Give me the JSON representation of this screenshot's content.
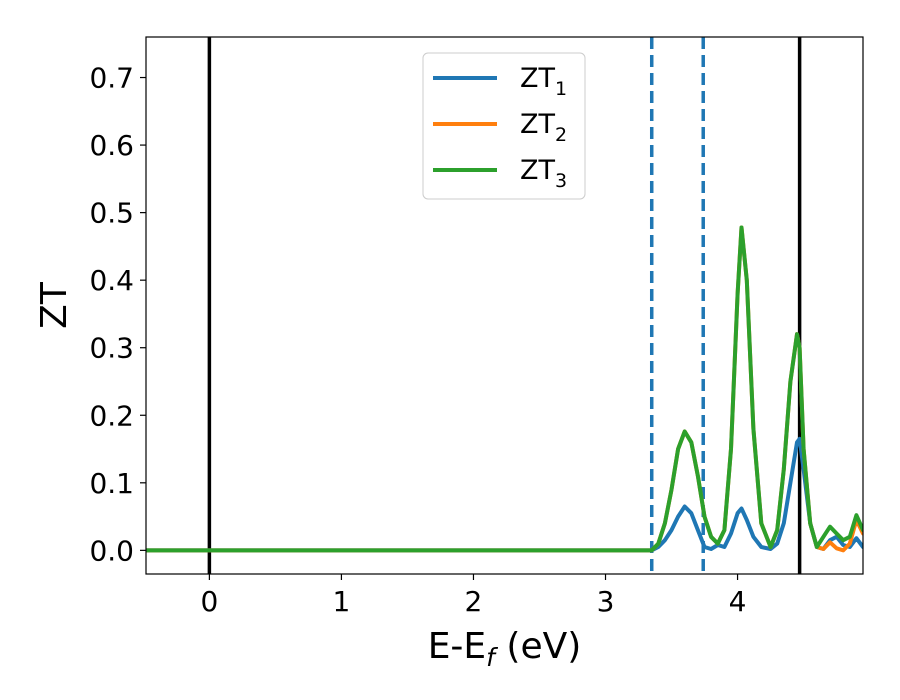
{
  "chart_data": {
    "type": "line",
    "xlabel": {
      "base": "E-E",
      "sub": "f",
      "suffix": " (eV)"
    },
    "ylabel": "ZT",
    "xlim": [
      -0.48,
      4.95
    ],
    "ylim": [
      -0.035,
      0.76
    ],
    "xticks": [
      0,
      1,
      2,
      3,
      4
    ],
    "xtick_labels": [
      "0",
      "1",
      "2",
      "3",
      "4"
    ],
    "yticks": [
      0.0,
      0.1,
      0.2,
      0.3,
      0.4,
      0.5,
      0.6,
      0.7
    ],
    "ytick_labels": [
      "0.0",
      "0.1",
      "0.2",
      "0.3",
      "0.4",
      "0.5",
      "0.6",
      "0.7"
    ],
    "grid": false,
    "legend_position": "top-center",
    "vlines": [
      {
        "x": 0.0,
        "style": "solid",
        "color": "#000000"
      },
      {
        "x": 4.47,
        "style": "solid",
        "color": "#000000"
      },
      {
        "x": 3.35,
        "style": "dashed",
        "color": "#1f77b4"
      },
      {
        "x": 3.74,
        "style": "dashed",
        "color": "#1f77b4"
      }
    ],
    "series": [
      {
        "name": {
          "base": "ZT",
          "sub": "1"
        },
        "color": "#1f77b4",
        "x": [
          -0.48,
          3.35,
          3.4,
          3.45,
          3.5,
          3.55,
          3.6,
          3.65,
          3.7,
          3.75,
          3.8,
          3.85,
          3.9,
          3.95,
          4.0,
          4.03,
          4.07,
          4.12,
          4.18,
          4.25,
          4.3,
          4.35,
          4.4,
          4.45,
          4.47,
          4.5,
          4.55,
          4.6,
          4.65,
          4.7,
          4.75,
          4.8,
          4.85,
          4.9,
          4.95
        ],
        "y": [
          0.0,
          0.0,
          0.005,
          0.015,
          0.03,
          0.05,
          0.065,
          0.055,
          0.03,
          0.005,
          0.002,
          0.008,
          0.005,
          0.025,
          0.055,
          0.062,
          0.045,
          0.02,
          0.005,
          0.002,
          0.01,
          0.04,
          0.1,
          0.16,
          0.165,
          0.12,
          0.04,
          0.005,
          0.002,
          0.015,
          0.02,
          0.008,
          0.005,
          0.018,
          0.005
        ]
      },
      {
        "name": {
          "base": "ZT",
          "sub": "2"
        },
        "color": "#ff7f0e",
        "x": [
          -0.48,
          3.35,
          3.4,
          3.45,
          3.5,
          3.55,
          3.6,
          3.65,
          3.7,
          3.75,
          3.8,
          3.85,
          3.9,
          3.95,
          4.0,
          4.03,
          4.07,
          4.12,
          4.18,
          4.25,
          4.3,
          4.35,
          4.4,
          4.45,
          4.47,
          4.5,
          4.55,
          4.6,
          4.65,
          4.7,
          4.75,
          4.8,
          4.85,
          4.9,
          4.95
        ],
        "y": [
          0.0,
          0.0,
          0.01,
          0.04,
          0.09,
          0.15,
          0.176,
          0.16,
          0.11,
          0.05,
          0.02,
          0.01,
          0.03,
          0.15,
          0.38,
          0.478,
          0.4,
          0.18,
          0.04,
          0.005,
          0.03,
          0.12,
          0.25,
          0.32,
          0.3,
          0.15,
          0.04,
          0.005,
          0.002,
          0.012,
          0.003,
          0.0,
          0.01,
          0.045,
          0.025
        ]
      },
      {
        "name": {
          "base": "ZT",
          "sub": "3"
        },
        "color": "#2ca02c",
        "x": [
          -0.48,
          3.35,
          3.4,
          3.45,
          3.5,
          3.55,
          3.6,
          3.65,
          3.7,
          3.75,
          3.8,
          3.85,
          3.9,
          3.95,
          4.0,
          4.03,
          4.07,
          4.12,
          4.18,
          4.25,
          4.3,
          4.35,
          4.4,
          4.45,
          4.47,
          4.5,
          4.55,
          4.6,
          4.65,
          4.7,
          4.75,
          4.8,
          4.85,
          4.9,
          4.95
        ],
        "y": [
          0.0,
          0.0,
          0.01,
          0.04,
          0.09,
          0.15,
          0.176,
          0.16,
          0.11,
          0.05,
          0.02,
          0.01,
          0.03,
          0.15,
          0.38,
          0.478,
          0.4,
          0.18,
          0.04,
          0.005,
          0.03,
          0.12,
          0.25,
          0.32,
          0.3,
          0.15,
          0.04,
          0.005,
          0.02,
          0.035,
          0.025,
          0.015,
          0.02,
          0.052,
          0.03
        ]
      }
    ]
  }
}
